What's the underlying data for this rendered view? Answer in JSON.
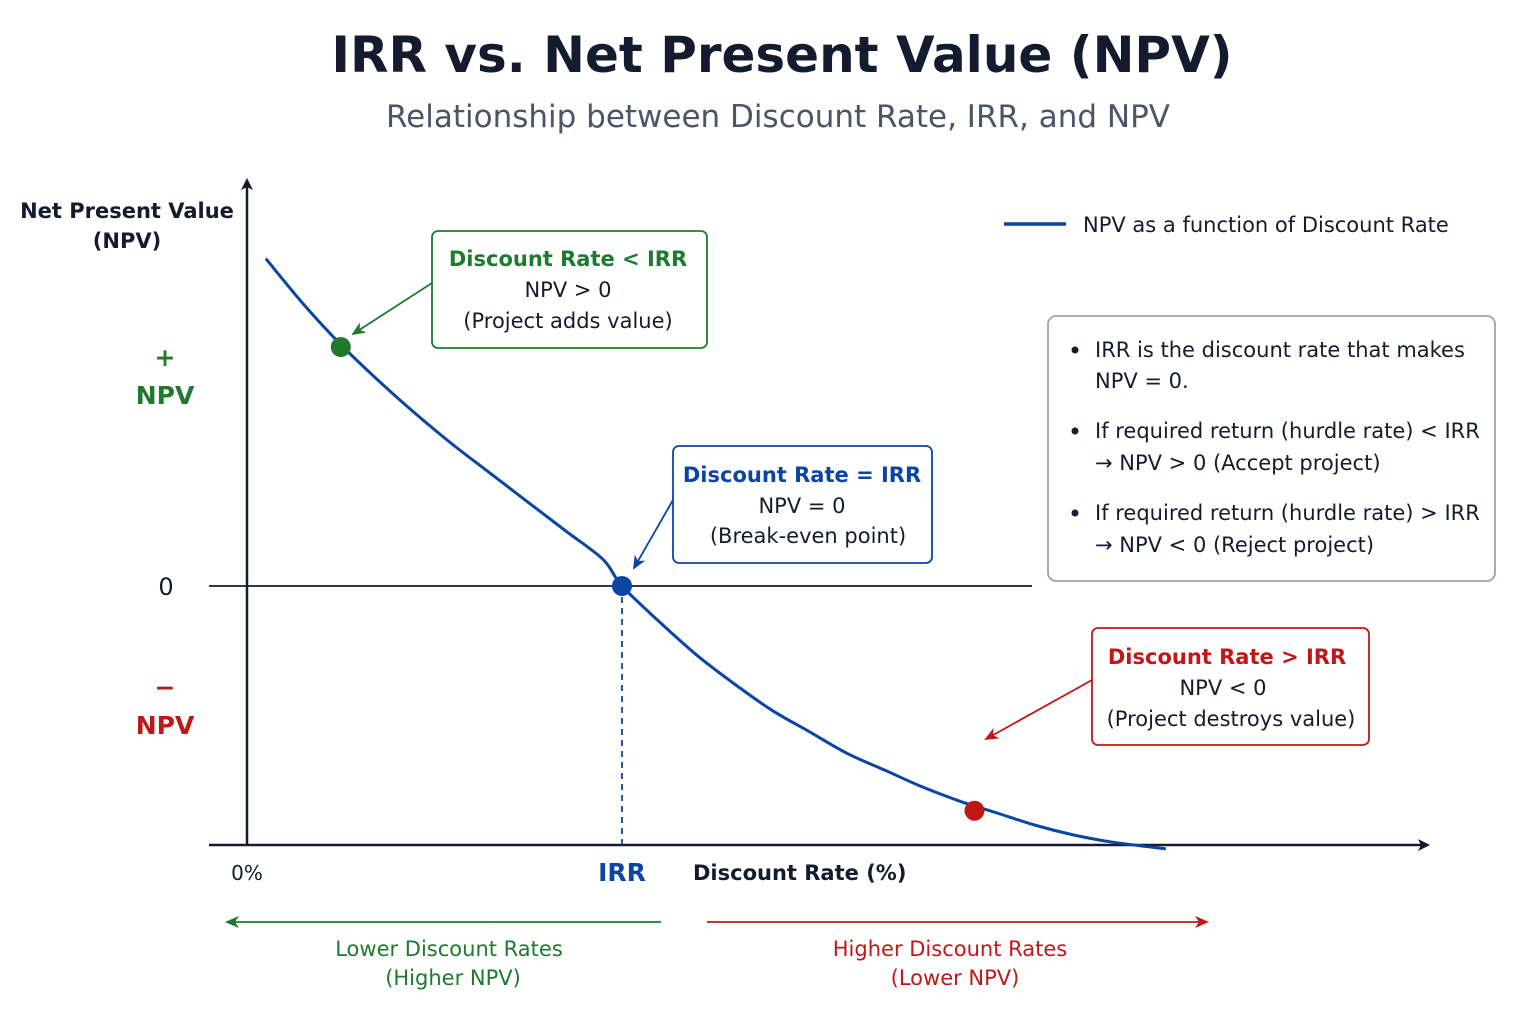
{
  "colors": {
    "text": "#131b2e",
    "curve": "#0b45a4",
    "positive": "#1e7a2e",
    "negative": "#c01818",
    "info_border": "#9aa3ad"
  },
  "chart_data": {
    "type": "line",
    "title": "IRR vs. Net Present Value (NPV)",
    "subtitle": "Relationship between Discount Rate, IRR, and NPV",
    "ylabel_line1": "Net Present Value",
    "ylabel_line2": "(NPV)",
    "xlabel": "Discount Rate (%)",
    "x_origin_label": "0%",
    "x_irr_label": "IRR",
    "y_zero_label": "0",
    "y_plus_sign": "+",
    "y_plus_label": "NPV",
    "y_minus_sign": "−",
    "y_minus_label": "NPV",
    "legend": "NPV as a function of Discount Rate",
    "x_ticks": [
      0,
      1
    ],
    "y_ticks": [
      0
    ],
    "series": [
      {
        "name": "NPV as a function of Discount Rate",
        "color": "#0b45a4",
        "x": [
          0.05,
          0.15,
          0.25,
          0.35,
          0.45,
          0.55,
          0.65,
          0.75,
          0.85,
          0.95,
          1.0,
          1.1,
          1.2,
          1.3,
          1.4,
          1.5,
          1.6,
          1.7,
          1.8,
          1.9,
          2.0,
          2.1,
          2.2,
          2.3,
          2.45
        ],
        "y": [
          1.37,
          1.18,
          1.01,
          0.86,
          0.72,
          0.59,
          0.47,
          0.35,
          0.23,
          0.11,
          0.0,
          -0.15,
          -0.29,
          -0.41,
          -0.52,
          -0.61,
          -0.7,
          -0.77,
          -0.84,
          -0.9,
          -0.95,
          -1.0,
          -1.04,
          -1.07,
          -1.1
        ]
      }
    ],
    "highlighted_points": [
      {
        "x": 0.25,
        "y": 1.0,
        "color": "#1e7a2e"
      },
      {
        "x": 1.0,
        "y": 0.0,
        "color": "#0b45a4"
      },
      {
        "x": 1.94,
        "y": -0.94,
        "color": "#c01818"
      }
    ],
    "annotations": {
      "below": {
        "line1": "Discount Rate < IRR",
        "line2": "NPV > 0",
        "line3": "(Project adds value)"
      },
      "equal": {
        "line1": "Discount Rate = IRR",
        "line2": "NPV = 0",
        "line3": "(Break-even point)"
      },
      "above": {
        "line1": "Discount Rate > IRR",
        "line2": "NPV < 0",
        "line3": "(Project destroys value)"
      }
    },
    "info_bullets": [
      {
        "line1": "IRR is the discount rate that makes",
        "line2": "NPV = 0."
      },
      {
        "line1": "If required return (hurdle rate) < IRR",
        "line2": "→ NPV > 0 (Accept project)"
      },
      {
        "line1": "If required return (hurdle rate) > IRR",
        "line2": "→ NPV < 0 (Reject project)"
      }
    ],
    "bottom_labels": {
      "left_line1": "Lower Discount Rates",
      "left_line2": "(Higher NPV)",
      "right_line1": "Higher Discount Rates",
      "right_line2": "(Lower NPV)"
    },
    "grid": false,
    "legend_position": "top-right"
  }
}
